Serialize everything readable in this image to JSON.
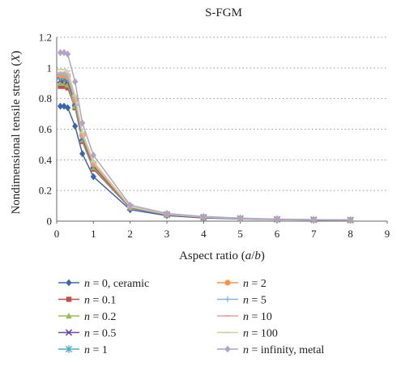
{
  "chart_data": {
    "type": "line",
    "title": "S-FGM",
    "xlabel_parts": [
      "Aspect ratio (",
      "a",
      "/",
      "b",
      ")"
    ],
    "ylabel_parts": [
      "Nondimensional tensile stress (",
      "X",
      ")"
    ],
    "xlim": [
      0,
      9
    ],
    "ylim": [
      0,
      1.2
    ],
    "x_ticks": [
      "0",
      "1",
      "2",
      "3",
      "4",
      "5",
      "6",
      "7",
      "8",
      "9"
    ],
    "y_ticks": [
      "0",
      "0.2",
      "0.4",
      "0.6",
      "0.8",
      "1",
      "1.2"
    ],
    "grid": "horizontal dotted",
    "legend_placement": "bottom",
    "x": [
      0.1,
      0.2,
      0.3,
      0.5,
      0.7,
      1,
      2,
      3,
      4,
      5,
      6,
      7,
      8
    ],
    "series": [
      {
        "name": "n = 0, ceramic",
        "n": "0",
        "suffix": ", ceramic",
        "color": "#3a66b0",
        "marker": "diamond",
        "values": [
          0.75,
          0.75,
          0.74,
          0.62,
          0.44,
          0.29,
          0.075,
          0.036,
          0.021,
          0.014,
          0.01,
          0.008,
          0.006
        ]
      },
      {
        "name": "n = 0.1",
        "n": "0.1",
        "suffix": "",
        "color": "#c0504d",
        "marker": "square",
        "values": [
          0.88,
          0.88,
          0.87,
          0.74,
          0.52,
          0.34,
          0.085,
          0.041,
          0.024,
          0.016,
          0.011,
          0.009,
          0.007
        ]
      },
      {
        "name": "n = 0.2",
        "n": "0.2",
        "suffix": "",
        "color": "#9bbb59",
        "marker": "triangle",
        "values": [
          0.9,
          0.9,
          0.89,
          0.75,
          0.53,
          0.35,
          0.087,
          0.042,
          0.025,
          0.016,
          0.012,
          0.009,
          0.007
        ]
      },
      {
        "name": "n = 0.5",
        "n": "0.5",
        "suffix": "",
        "color": "#6e4d9b",
        "marker": "x",
        "values": [
          0.92,
          0.92,
          0.91,
          0.77,
          0.54,
          0.36,
          0.089,
          0.043,
          0.025,
          0.017,
          0.012,
          0.009,
          0.007
        ]
      },
      {
        "name": "n = 1",
        "n": "1",
        "suffix": "",
        "color": "#4bacc6",
        "marker": "star",
        "values": [
          0.94,
          0.94,
          0.93,
          0.78,
          0.55,
          0.37,
          0.091,
          0.044,
          0.026,
          0.017,
          0.012,
          0.009,
          0.007
        ]
      },
      {
        "name": "n = 2",
        "n": "2",
        "suffix": "",
        "color": "#f79646",
        "marker": "circle",
        "values": [
          0.95,
          0.95,
          0.94,
          0.79,
          0.56,
          0.37,
          0.092,
          0.044,
          0.026,
          0.017,
          0.012,
          0.009,
          0.007
        ]
      },
      {
        "name": "n = 5",
        "n": "5",
        "suffix": "",
        "color": "#8eb4e3",
        "marker": "plus",
        "values": [
          0.96,
          0.96,
          0.95,
          0.8,
          0.57,
          0.38,
          0.093,
          0.045,
          0.027,
          0.017,
          0.012,
          0.009,
          0.007
        ]
      },
      {
        "name": "n = 10",
        "n": "10",
        "suffix": "",
        "color": "#e6a5a4",
        "marker": "dash",
        "values": [
          0.97,
          0.97,
          0.96,
          0.81,
          0.57,
          0.38,
          0.094,
          0.045,
          0.027,
          0.018,
          0.012,
          0.009,
          0.007
        ]
      },
      {
        "name": "n = 100",
        "n": "100",
        "suffix": "",
        "color": "#c3d69b",
        "marker": "dash",
        "values": [
          0.99,
          0.99,
          0.98,
          0.82,
          0.58,
          0.39,
          0.095,
          0.046,
          0.027,
          0.018,
          0.012,
          0.009,
          0.007
        ]
      },
      {
        "name": "n = infinity, metal",
        "n": "infinity",
        "suffix": ", metal",
        "color": "#b3a2c7",
        "marker": "diamond",
        "values": [
          1.1,
          1.1,
          1.09,
          0.91,
          0.64,
          0.43,
          0.105,
          0.05,
          0.03,
          0.02,
          0.013,
          0.01,
          0.008
        ]
      }
    ]
  }
}
